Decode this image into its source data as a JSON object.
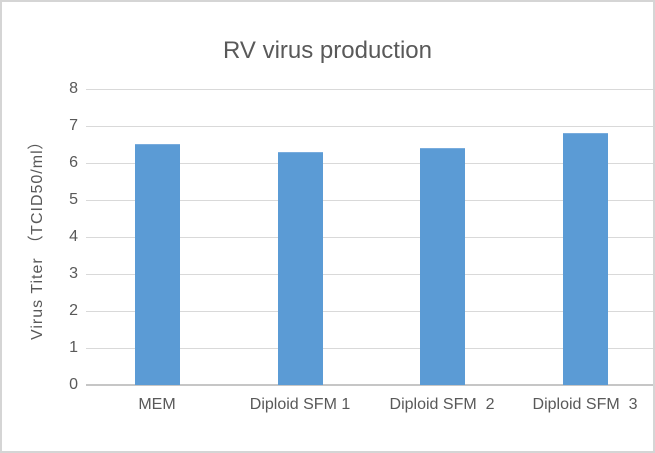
{
  "chart_data": {
    "type": "bar",
    "title": "RV virus production",
    "categories": [
      "MEM",
      "Diploid SFM 1",
      "Diploid SFM  2",
      "Diploid SFM  3"
    ],
    "values": [
      6.5,
      6.3,
      6.4,
      6.8
    ],
    "xlabel": "",
    "ylabel": "Virus Titer （TCID50/ml）",
    "ylim": [
      0,
      8
    ],
    "ytick_interval": 1,
    "yticks": [
      0,
      1,
      2,
      3,
      4,
      5,
      6,
      7,
      8
    ],
    "grid": true,
    "legend_position": "none",
    "colors": {
      "bar": "#5b9bd5",
      "gridline": "#d9d9d9",
      "axis_line": "#c6c6c6",
      "text": "#595959",
      "frame_border": "#d5d5d5",
      "background": "#ffffff"
    }
  }
}
